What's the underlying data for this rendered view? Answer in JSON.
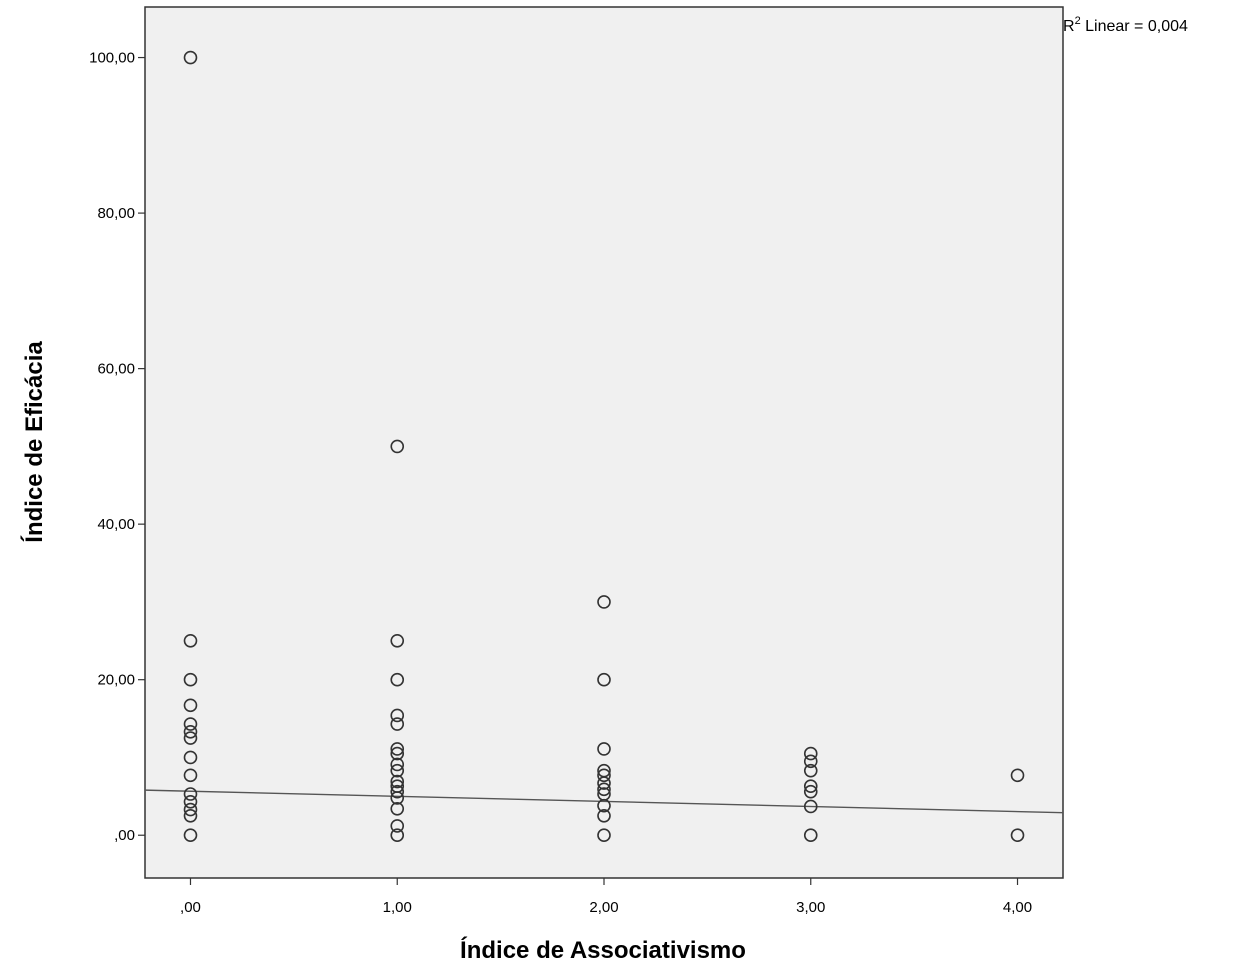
{
  "chart_data": {
    "type": "scatter",
    "xlabel": "Índice de Associativismo",
    "ylabel": "Índice de Eficácia",
    "xlim": [
      -0.22,
      4.22
    ],
    "ylim": [
      -5.5,
      106.5
    ],
    "x_ticks": [
      0,
      1,
      2,
      3,
      4
    ],
    "x_tick_labels": [
      ",00",
      "1,00",
      "2,00",
      "3,00",
      "4,00"
    ],
    "y_ticks": [
      0,
      20,
      40,
      60,
      80,
      100
    ],
    "y_tick_labels": [
      ",00",
      "20,00",
      "40,00",
      "60,00",
      "80,00",
      "100,00"
    ],
    "grid": false,
    "plot_background": "#f0f0f0",
    "marker": "open-circle",
    "marker_color": "#333333",
    "fit_line": {
      "type": "linear",
      "label_prefix": "R",
      "label_superscript": "2",
      "label_text": " Linear = 0,004",
      "x": [
        -0.22,
        4.22
      ],
      "y": [
        5.8,
        2.9
      ],
      "color": "#555555"
    },
    "points": [
      {
        "x": 0,
        "y": 100
      },
      {
        "x": 0,
        "y": 25
      },
      {
        "x": 0,
        "y": 20
      },
      {
        "x": 0,
        "y": 16.7
      },
      {
        "x": 0,
        "y": 14.3
      },
      {
        "x": 0,
        "y": 13.3
      },
      {
        "x": 0,
        "y": 12.5
      },
      {
        "x": 0,
        "y": 10
      },
      {
        "x": 0,
        "y": 7.7
      },
      {
        "x": 0,
        "y": 5.3
      },
      {
        "x": 0,
        "y": 4.3
      },
      {
        "x": 0,
        "y": 3.3
      },
      {
        "x": 0,
        "y": 2.5
      },
      {
        "x": 0,
        "y": 0
      },
      {
        "x": 1,
        "y": 50
      },
      {
        "x": 1,
        "y": 25
      },
      {
        "x": 1,
        "y": 20
      },
      {
        "x": 1,
        "y": 15.4
      },
      {
        "x": 1,
        "y": 14.3
      },
      {
        "x": 1,
        "y": 11.1
      },
      {
        "x": 1,
        "y": 10.5
      },
      {
        "x": 1,
        "y": 9.1
      },
      {
        "x": 1,
        "y": 8.3
      },
      {
        "x": 1,
        "y": 6.9
      },
      {
        "x": 1,
        "y": 6.3
      },
      {
        "x": 1,
        "y": 5.6
      },
      {
        "x": 1,
        "y": 4.8
      },
      {
        "x": 1,
        "y": 3.4
      },
      {
        "x": 1,
        "y": 1.2
      },
      {
        "x": 1,
        "y": 0
      },
      {
        "x": 2,
        "y": 30
      },
      {
        "x": 2,
        "y": 20
      },
      {
        "x": 2,
        "y": 11.1
      },
      {
        "x": 2,
        "y": 8.3
      },
      {
        "x": 2,
        "y": 7.7
      },
      {
        "x": 2,
        "y": 6.7
      },
      {
        "x": 2,
        "y": 5.9
      },
      {
        "x": 2,
        "y": 5.3
      },
      {
        "x": 2,
        "y": 3.8
      },
      {
        "x": 2,
        "y": 2.5
      },
      {
        "x": 2,
        "y": 0
      },
      {
        "x": 3,
        "y": 10.5
      },
      {
        "x": 3,
        "y": 9.5
      },
      {
        "x": 3,
        "y": 8.3
      },
      {
        "x": 3,
        "y": 6.3
      },
      {
        "x": 3,
        "y": 5.6
      },
      {
        "x": 3,
        "y": 3.7
      },
      {
        "x": 3,
        "y": 0
      },
      {
        "x": 4,
        "y": 7.7
      },
      {
        "x": 4,
        "y": 0
      }
    ]
  }
}
